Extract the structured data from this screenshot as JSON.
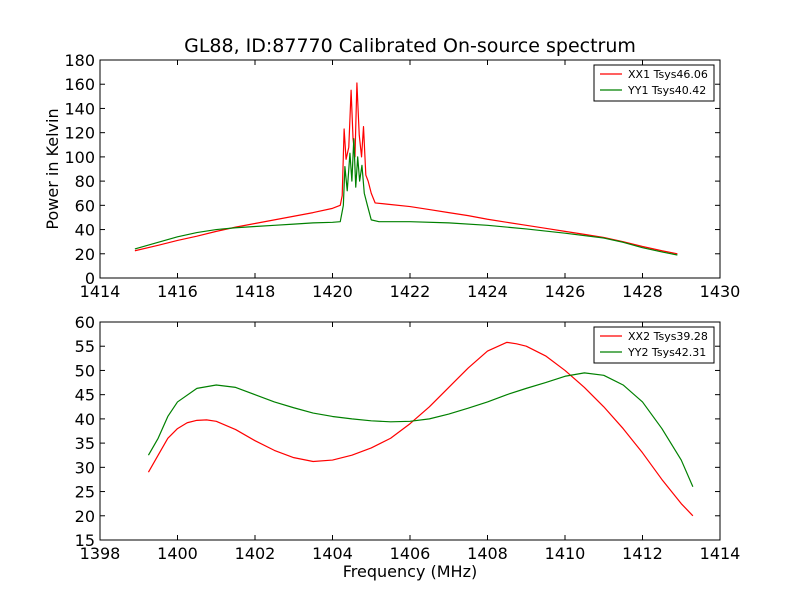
{
  "figure": {
    "title": "GL88, ID:87770 Calibrated On-source spectrum"
  },
  "colors": {
    "xx": "#ff0000",
    "yy": "#008000",
    "axes": "#000000",
    "background": "#ffffff"
  },
  "chart_data": [
    {
      "type": "line",
      "title": "GL88, ID:87770 Calibrated On-source spectrum",
      "xlabel": "",
      "ylabel": "Power in Kelvin",
      "xlim": [
        1414,
        1430
      ],
      "ylim": [
        0,
        180
      ],
      "xticks": [
        1414,
        1416,
        1418,
        1420,
        1422,
        1424,
        1426,
        1428,
        1430
      ],
      "yticks": [
        0,
        20,
        40,
        60,
        80,
        100,
        120,
        140,
        160,
        180
      ],
      "grid": false,
      "legend": "top-right",
      "series": [
        {
          "name": "XX1 Tsys46.06",
          "color": "#ff0000",
          "points": [
            [
              1414.9,
              22.5
            ],
            [
              1415.5,
              27
            ],
            [
              1416.0,
              31
            ],
            [
              1416.5,
              34.5
            ],
            [
              1417.0,
              38.5
            ],
            [
              1417.5,
              42
            ],
            [
              1418.0,
              45
            ],
            [
              1418.5,
              48
            ],
            [
              1419.0,
              51
            ],
            [
              1419.5,
              54
            ],
            [
              1420.0,
              57.5
            ],
            [
              1420.2,
              60
            ],
            [
              1420.25,
              68
            ],
            [
              1420.3,
              123
            ],
            [
              1420.35,
              98
            ],
            [
              1420.42,
              108
            ],
            [
              1420.48,
              155
            ],
            [
              1420.53,
              115
            ],
            [
              1420.58,
              100
            ],
            [
              1420.63,
              161
            ],
            [
              1420.69,
              118
            ],
            [
              1420.75,
              100
            ],
            [
              1420.8,
              125
            ],
            [
              1420.86,
              85
            ],
            [
              1420.92,
              80
            ],
            [
              1421.0,
              70
            ],
            [
              1421.1,
              62
            ],
            [
              1421.4,
              61
            ],
            [
              1422.0,
              59
            ],
            [
              1422.5,
              56.5
            ],
            [
              1423.0,
              54
            ],
            [
              1423.5,
              51.5
            ],
            [
              1424.0,
              48.5
            ],
            [
              1424.5,
              46
            ],
            [
              1425.0,
              43.5
            ],
            [
              1425.5,
              41
            ],
            [
              1426.0,
              38.5
            ],
            [
              1426.5,
              36
            ],
            [
              1427.0,
              33.5
            ],
            [
              1427.5,
              30
            ],
            [
              1428.0,
              26
            ],
            [
              1428.5,
              22.5
            ],
            [
              1428.9,
              20
            ]
          ]
        },
        {
          "name": "YY1 Tsys40.42",
          "color": "#008000",
          "points": [
            [
              1414.9,
              24
            ],
            [
              1415.5,
              29.5
            ],
            [
              1416.0,
              34
            ],
            [
              1416.5,
              37.5
            ],
            [
              1417.0,
              40
            ],
            [
              1417.5,
              41.5
            ],
            [
              1418.0,
              42.5
            ],
            [
              1418.5,
              43.5
            ],
            [
              1419.0,
              44.5
            ],
            [
              1419.5,
              45.5
            ],
            [
              1420.0,
              46
            ],
            [
              1420.2,
              46.5
            ],
            [
              1420.28,
              60
            ],
            [
              1420.32,
              92
            ],
            [
              1420.38,
              72
            ],
            [
              1420.45,
              103
            ],
            [
              1420.5,
              80
            ],
            [
              1420.55,
              115
            ],
            [
              1420.6,
              75
            ],
            [
              1420.65,
              100
            ],
            [
              1420.7,
              80
            ],
            [
              1420.76,
              93
            ],
            [
              1420.82,
              70
            ],
            [
              1420.9,
              60
            ],
            [
              1421.0,
              48
            ],
            [
              1421.2,
              46.5
            ],
            [
              1422.0,
              46.5
            ],
            [
              1423.0,
              45.5
            ],
            [
              1424.0,
              43.5
            ],
            [
              1425.0,
              40.5
            ],
            [
              1426.0,
              37
            ],
            [
              1427.0,
              33
            ],
            [
              1427.5,
              29.5
            ],
            [
              1428.0,
              25
            ],
            [
              1428.5,
              21.5
            ],
            [
              1428.9,
              19
            ]
          ]
        }
      ]
    },
    {
      "type": "line",
      "title": "",
      "xlabel": "Frequency (MHz)",
      "ylabel": "",
      "xlim": [
        1398,
        1414
      ],
      "ylim": [
        15,
        60
      ],
      "xticks": [
        1398,
        1400,
        1402,
        1404,
        1406,
        1408,
        1410,
        1412,
        1414
      ],
      "yticks": [
        15,
        20,
        25,
        30,
        35,
        40,
        45,
        50,
        55,
        60
      ],
      "grid": false,
      "legend": "top-right",
      "series": [
        {
          "name": "XX2 Tsys39.28",
          "color": "#ff0000",
          "points": [
            [
              1399.25,
              29
            ],
            [
              1399.5,
              32.5
            ],
            [
              1399.75,
              36
            ],
            [
              1400.0,
              38
            ],
            [
              1400.25,
              39.2
            ],
            [
              1400.5,
              39.7
            ],
            [
              1400.75,
              39.8
            ],
            [
              1401.0,
              39.5
            ],
            [
              1401.5,
              37.8
            ],
            [
              1402.0,
              35.5
            ],
            [
              1402.5,
              33.5
            ],
            [
              1403.0,
              32
            ],
            [
              1403.5,
              31.2
            ],
            [
              1404.0,
              31.5
            ],
            [
              1404.5,
              32.5
            ],
            [
              1405.0,
              34
            ],
            [
              1405.5,
              36
            ],
            [
              1406.0,
              39
            ],
            [
              1406.5,
              42.5
            ],
            [
              1407.0,
              46.5
            ],
            [
              1407.5,
              50.5
            ],
            [
              1408.0,
              54
            ],
            [
              1408.5,
              55.8
            ],
            [
              1408.75,
              55.5
            ],
            [
              1409.0,
              55
            ],
            [
              1409.5,
              53
            ],
            [
              1410.0,
              50
            ],
            [
              1410.5,
              46.5
            ],
            [
              1411.0,
              42.5
            ],
            [
              1411.5,
              38
            ],
            [
              1412.0,
              33
            ],
            [
              1412.5,
              27.5
            ],
            [
              1413.0,
              22.5
            ],
            [
              1413.3,
              20
            ]
          ]
        },
        {
          "name": "YY2 Tsys42.31",
          "color": "#008000",
          "points": [
            [
              1399.25,
              32.5
            ],
            [
              1399.5,
              36
            ],
            [
              1399.75,
              40.5
            ],
            [
              1400.0,
              43.5
            ],
            [
              1400.5,
              46.3
            ],
            [
              1401.0,
              47
            ],
            [
              1401.5,
              46.5
            ],
            [
              1402.0,
              45
            ],
            [
              1402.5,
              43.5
            ],
            [
              1403.0,
              42.3
            ],
            [
              1403.5,
              41.2
            ],
            [
              1404.0,
              40.5
            ],
            [
              1404.5,
              40
            ],
            [
              1405.0,
              39.6
            ],
            [
              1405.5,
              39.4
            ],
            [
              1406.0,
              39.5
            ],
            [
              1406.5,
              40
            ],
            [
              1407.0,
              41
            ],
            [
              1407.5,
              42.2
            ],
            [
              1408.0,
              43.5
            ],
            [
              1408.5,
              45
            ],
            [
              1409.0,
              46.3
            ],
            [
              1409.5,
              47.5
            ],
            [
              1410.0,
              48.8
            ],
            [
              1410.5,
              49.5
            ],
            [
              1411.0,
              49
            ],
            [
              1411.5,
              47
            ],
            [
              1412.0,
              43.5
            ],
            [
              1412.5,
              38
            ],
            [
              1413.0,
              31.5
            ],
            [
              1413.3,
              26
            ]
          ]
        }
      ]
    }
  ]
}
